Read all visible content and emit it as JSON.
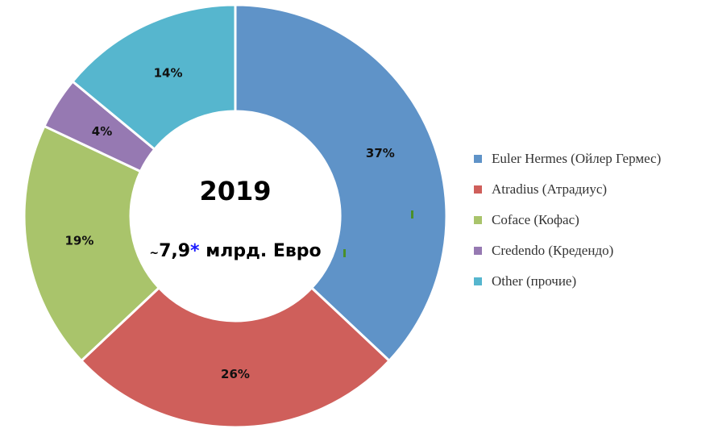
{
  "chart_data": {
    "type": "pie",
    "center": {
      "year": "2019",
      "amount_prefix": "~",
      "amount_value": "7,9",
      "amount_star": "*",
      "amount_suffix": " млрд. Евро"
    },
    "series": [
      {
        "name": "Euler Hermes (Ойлер Гермес)",
        "value": 37,
        "label": "37%",
        "color": "#5f93c8"
      },
      {
        "name": "Atradius (Атрадиус)",
        "value": 26,
        "label": "26%",
        "color": "#cf5f5b"
      },
      {
        "name": "Coface (Кофас)",
        "value": 19,
        "label": "19%",
        "color": "#a9c46b"
      },
      {
        "name": "Credendo (Кредендо)",
        "value": 4,
        "label": "4%",
        "color": "#9679b2"
      },
      {
        "name": "Other (прочие)",
        "value": 14,
        "label": "14%",
        "color": "#56b6ce"
      }
    ],
    "legend_position": "right"
  }
}
